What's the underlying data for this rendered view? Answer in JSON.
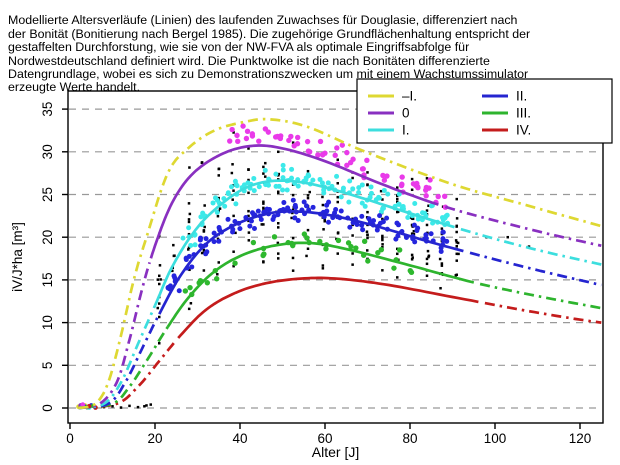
{
  "description": {
    "lines": [
      "Modellierte Altersverläufe (Linien) des laufenden Zuwachses für Douglasie, differenziert nach",
      "der Bonität (Bonitierung nach Bergel 1985). Die zugehörige Grundflächenhaltung entspricht der",
      "gestaffelten Durchforstung, wie sie von der NW-FVA als optimale Eingriffsabfolge für",
      "Nordwestdeutschland definiert wird. Die Punktwolke ist die nach Bonitäten differenzierte",
      "Datengrundlage, wobei es sich zu Demonstrationszwecken um mit einem Wachstumssimulator",
      "erzeugte Werte handelt."
    ]
  },
  "chart_data": {
    "type": "line+scatter",
    "title": "",
    "xlabel": "Alter [J]",
    "ylabel": "iV/J*ha [m³]",
    "xlim": [
      -2,
      126
    ],
    "ylim": [
      -1.8,
      37
    ],
    "xticks": [
      0,
      20,
      40,
      60,
      80,
      100,
      120
    ],
    "yticks": [
      0,
      5,
      10,
      15,
      20,
      25,
      30,
      35
    ],
    "grid": "horizontal-dashed",
    "grid_color": "#999999",
    "legend": {
      "position": "top-right",
      "columns": 2,
      "column1": [
        "–I.",
        "0",
        "I."
      ],
      "column2": [
        "II.",
        "III.",
        "IV."
      ]
    },
    "series": [
      {
        "name": "–I.",
        "color": "#ded832",
        "linestyle": "dashdot",
        "solid_range": null,
        "points": [
          [
            2,
            0
          ],
          [
            6,
            0.5
          ],
          [
            9,
            3
          ],
          [
            12,
            8.5
          ],
          [
            15,
            15
          ],
          [
            18,
            20
          ],
          [
            23,
            27.5
          ],
          [
            28,
            30.5
          ],
          [
            34,
            32.5
          ],
          [
            41,
            33.5
          ],
          [
            47,
            33.8
          ],
          [
            56,
            32.9
          ],
          [
            70,
            29.9
          ],
          [
            90,
            26.2
          ],
          [
            107,
            23.8
          ],
          [
            125,
            21.3
          ]
        ]
      },
      {
        "name": "0",
        "color": "#8930c0",
        "linestyle": "solid",
        "solid_range": [
          19,
          87
        ],
        "points": [
          [
            2,
            0
          ],
          [
            7,
            0.5
          ],
          [
            11,
            3
          ],
          [
            14,
            8
          ],
          [
            17,
            14
          ],
          [
            20,
            19
          ],
          [
            24,
            24
          ],
          [
            29,
            27.5
          ],
          [
            36,
            29.8
          ],
          [
            43,
            30.7
          ],
          [
            50,
            30.4
          ],
          [
            60,
            28.9
          ],
          [
            75,
            25.9
          ],
          [
            90,
            23.3
          ],
          [
            110,
            20.7
          ],
          [
            125,
            19.0
          ]
        ]
      },
      {
        "name": "I.",
        "color": "#3cdede",
        "linestyle": "solid",
        "solid_range": [
          20,
          91
        ],
        "points": [
          [
            2,
            0
          ],
          [
            8,
            0.5
          ],
          [
            12,
            3
          ],
          [
            16,
            7.5
          ],
          [
            20,
            12
          ],
          [
            24,
            16.5
          ],
          [
            29,
            20.5
          ],
          [
            34,
            23.2
          ],
          [
            41,
            25.7
          ],
          [
            48,
            26.6
          ],
          [
            56,
            26.3
          ],
          [
            66,
            25.0
          ],
          [
            80,
            22.8
          ],
          [
            95,
            20.5
          ],
          [
            110,
            18.5
          ],
          [
            125,
            16.8
          ]
        ]
      },
      {
        "name": "II.",
        "color": "#2525d0",
        "linestyle": "solid",
        "solid_range": [
          21,
          93
        ],
        "points": [
          [
            2,
            0
          ],
          [
            9,
            0.5
          ],
          [
            13,
            3
          ],
          [
            17,
            7
          ],
          [
            21,
            11
          ],
          [
            26,
            15.5
          ],
          [
            32,
            19.2
          ],
          [
            39,
            21.5
          ],
          [
            47,
            22.8
          ],
          [
            54,
            23.0
          ],
          [
            62,
            22.5
          ],
          [
            72,
            21.3
          ],
          [
            85,
            19.4
          ],
          [
            100,
            17.4
          ],
          [
            112,
            15.9
          ],
          [
            125,
            14.4
          ]
        ]
      },
      {
        "name": "III.",
        "color": "#2eb42e",
        "linestyle": "solid",
        "solid_range": [
          23,
          96
        ],
        "points": [
          [
            2,
            0
          ],
          [
            10,
            0.5
          ],
          [
            14,
            2.5
          ],
          [
            18,
            5.5
          ],
          [
            23,
            9.5
          ],
          [
            28,
            13
          ],
          [
            34,
            16
          ],
          [
            41,
            18
          ],
          [
            49,
            19.1
          ],
          [
            57,
            19.3
          ],
          [
            66,
            18.5
          ],
          [
            80,
            16.7
          ],
          [
            95,
            14.7
          ],
          [
            110,
            13.1
          ],
          [
            125,
            11.7
          ]
        ]
      },
      {
        "name": "IV.",
        "color": "#c41c1c",
        "linestyle": "solid",
        "solid_range": [
          25,
          97
        ],
        "points": [
          [
            2,
            0
          ],
          [
            11,
            0.5
          ],
          [
            16,
            2.5
          ],
          [
            21,
            5.5
          ],
          [
            26,
            8.5
          ],
          [
            32,
            11.5
          ],
          [
            39,
            13.5
          ],
          [
            47,
            14.7
          ],
          [
            56,
            15.2
          ],
          [
            64,
            15.1
          ],
          [
            75,
            14.4
          ],
          [
            90,
            13.0
          ],
          [
            105,
            11.6
          ],
          [
            118,
            10.5
          ],
          [
            125,
            10.0
          ]
        ]
      }
    ],
    "scatter": {
      "seed": 11,
      "clusters": [
        {
          "name": "points-0",
          "ref_series": "0",
          "color": "#e93ae9",
          "radius": 2.7,
          "age_range": [
            38.5,
            87.5
          ],
          "step": 3.5,
          "per_column": 4,
          "x_jitter": 1.4,
          "v_offset": 1.2,
          "v_spread": 1.5
        },
        {
          "name": "points-I",
          "ref_series": "I.",
          "color": "#3ce9e9",
          "radius": 2.5,
          "age_range": [
            28,
            87.5
          ],
          "step": 3.5,
          "per_column": 7,
          "x_jitter": 1.5,
          "v_offset": 0.4,
          "v_spread": 1.6
        },
        {
          "name": "points-II",
          "ref_series": "II.",
          "color": "#2525dd",
          "radius": 2.5,
          "age_range": [
            24.5,
            87.5
          ],
          "step": 3.5,
          "per_column": 7,
          "x_jitter": 1.5,
          "v_offset": 0.3,
          "v_spread": 1.5
        },
        {
          "name": "points-III",
          "ref_series": "III.",
          "color": "#2eb82e",
          "radius": 2.7,
          "age_range": [
            28,
            80.5
          ],
          "step": 3.5,
          "per_column": 2,
          "x_jitter": 1.2,
          "v_offset": 0.3,
          "v_spread": 1.5
        }
      ],
      "black_band": {
        "name": "points-all",
        "color": "#000000",
        "size": 2.5,
        "age_range": [
          21,
          91
        ],
        "step": 3.5,
        "per_column": 13,
        "low_ref": "III.",
        "low_offset": -3.5,
        "high_ref": "0",
        "high_offset": 3.0
      },
      "extra_black_points": [
        [
          98,
          20.0
        ],
        [
          103,
          20.0
        ],
        [
          108,
          18.9
        ],
        [
          17.5,
          0.2
        ],
        [
          19,
          0.4
        ]
      ],
      "zero_black_points": [
        [
          8,
          0.1
        ],
        [
          10,
          0.2
        ],
        [
          12,
          0.05
        ],
        [
          14,
          0.25
        ],
        [
          16,
          0.1
        ],
        [
          18,
          0.3
        ]
      ],
      "origin_points": [
        {
          "color": "#ded832",
          "a": 2.0,
          "v": 0.15
        },
        {
          "color": "#ded832",
          "a": 3.5,
          "v": 0.3
        },
        {
          "color": "#8930c0",
          "a": 2.5,
          "v": 0.3
        },
        {
          "color": "#8930c0",
          "a": 4.0,
          "v": 0.1
        },
        {
          "color": "#3ce9e9",
          "a": 3.0,
          "v": 0.2
        },
        {
          "color": "#3ce9e9",
          "a": 4.5,
          "v": 0.05
        },
        {
          "color": "#2525dd",
          "a": 3.5,
          "v": 0.15
        },
        {
          "color": "#2525dd",
          "a": 5.0,
          "v": 0.3
        },
        {
          "color": "#2eb82e",
          "a": 4.0,
          "v": 0.1
        },
        {
          "color": "#2eb82e",
          "a": 5.5,
          "v": 0.25
        },
        {
          "color": "#c41c1c",
          "a": 4.5,
          "v": 0.2
        },
        {
          "color": "#c41c1c",
          "a": 6.0,
          "v": 0.05
        },
        {
          "color": "#e93ae9",
          "a": 3.0,
          "v": 0.4
        }
      ]
    },
    "axis_color": "#000000",
    "plot_bg": "#ffffff"
  }
}
